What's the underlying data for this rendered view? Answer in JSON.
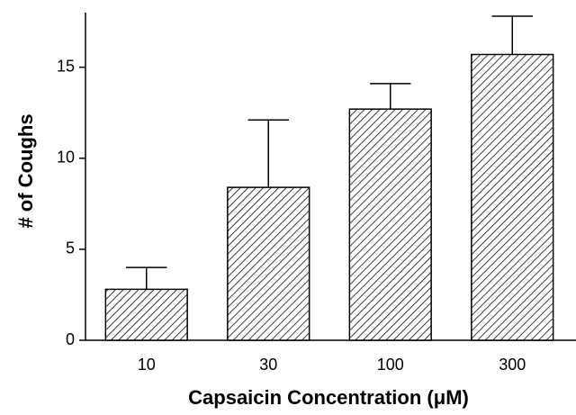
{
  "chart_data": {
    "type": "bar",
    "xlabel": "Capsaicin Concentration (μM)",
    "ylabel": "# of Coughs",
    "categories": [
      "10",
      "30",
      "100",
      "300"
    ],
    "values": [
      2.8,
      8.4,
      12.7,
      15.7
    ],
    "errors": [
      1.2,
      3.7,
      1.4,
      2.1
    ],
    "color": "#000000",
    "ylim": [
      0,
      18
    ],
    "yticks": [
      0,
      5,
      10,
      15
    ]
  }
}
